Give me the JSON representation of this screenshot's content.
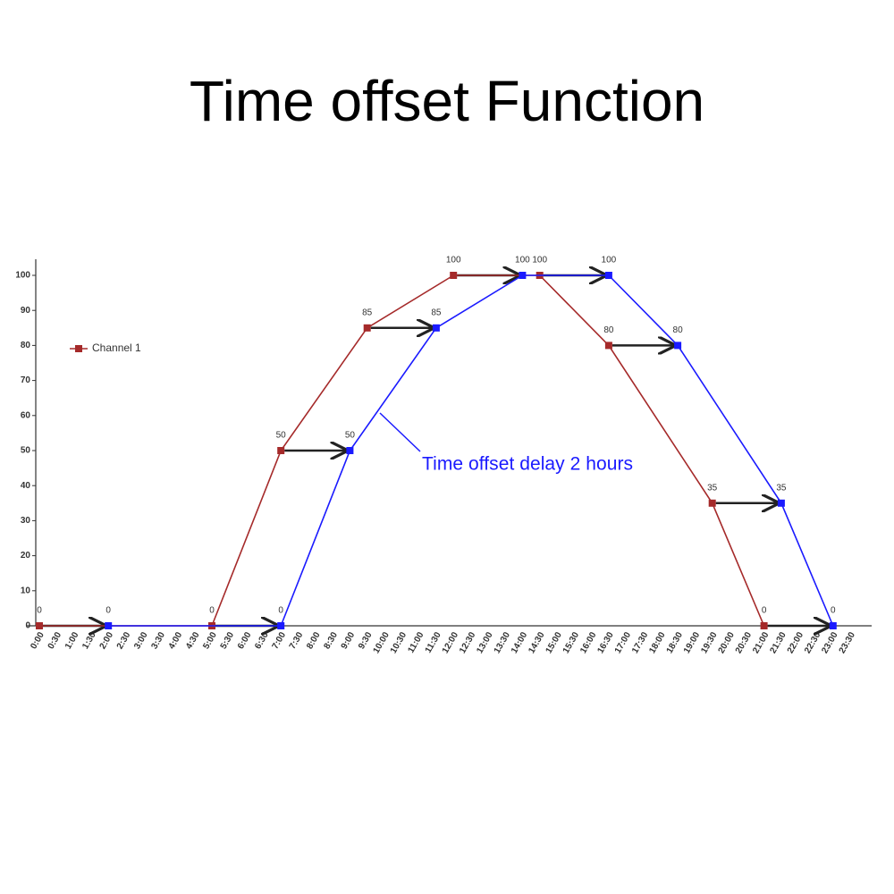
{
  "chart_data": {
    "type": "line",
    "title": "Time offset Function",
    "annotation": "Time offset delay 2 hours",
    "categories": [
      "0:00",
      "0:30",
      "1:00",
      "1:30",
      "2:00",
      "2:30",
      "3:00",
      "3:30",
      "4:00",
      "4:30",
      "5:00",
      "5:30",
      "6:00",
      "6:30",
      "7:00",
      "7:30",
      "8:00",
      "8:30",
      "9:00",
      "9:30",
      "10:00",
      "10:30",
      "11:00",
      "11:30",
      "12:00",
      "12:30",
      "13:00",
      "13:30",
      "14:00",
      "14:30",
      "15:00",
      "15:30",
      "16:00",
      "16:30",
      "17:00",
      "17:30",
      "18:00",
      "18:30",
      "19:00",
      "19:30",
      "20:00",
      "20:30",
      "21:00",
      "21:30",
      "22:00",
      "22:30",
      "23:00",
      "23:30"
    ],
    "series": [
      {
        "name": "Channel 1",
        "color": "#a52a2a",
        "x": [
          "0:00",
          "5:00",
          "7:00",
          "9:30",
          "12:00",
          "14:30",
          "16:30",
          "19:30",
          "21:00"
        ],
        "values": [
          0,
          0,
          50,
          85,
          100,
          100,
          80,
          35,
          0
        ]
      },
      {
        "color": "#1a1aff",
        "x": [
          "2:00",
          "7:00",
          "9:00",
          "11:30",
          "14:00",
          "16:30",
          "18:30",
          "21:30",
          "23:00"
        ],
        "values": [
          0,
          0,
          50,
          85,
          100,
          100,
          80,
          35,
          0
        ]
      }
    ],
    "ylim": [
      0,
      100
    ],
    "yticks": [
      0,
      10,
      20,
      30,
      40,
      50,
      60,
      70,
      80,
      90,
      100
    ],
    "grid": false,
    "legend": "left"
  }
}
